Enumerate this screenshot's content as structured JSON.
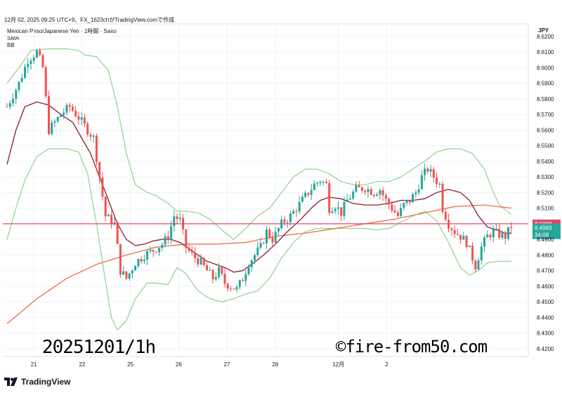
{
  "header": {
    "snapshot_line": "12月 02, 2025 09:25 UTC+9、FX_1623chがTradingView.comで作成"
  },
  "legend": {
    "symbol_line": "Mexican Peso/Japanese Yen · 1時間 · Saxo",
    "indicator_1": "SMA",
    "indicator_2": "BB"
  },
  "watermarks": {
    "date_tag": "20251201/1h",
    "site": "©fire-from50.com"
  },
  "branding": {
    "logo_text": "TradingView"
  },
  "chart_data": {
    "type": "candlestick",
    "currency_label": "JPY",
    "x_tick_labels": [
      "21",
      "22",
      "25",
      "26",
      "27",
      "28",
      "12月",
      "2"
    ],
    "y_ticks": [
      "8.6200",
      "8.6100",
      "8.6000",
      "8.5900",
      "8.5800",
      "8.5700",
      "8.5600",
      "8.5500",
      "8.5400",
      "8.5300",
      "8.5200",
      "8.5100",
      "8.4900",
      "8.4800",
      "8.4700",
      "8.4600",
      "8.4500",
      "8.4400",
      "8.4300",
      "8.4200"
    ],
    "ylim": [
      8.415,
      8.628
    ],
    "reference_line": {
      "value": 8.5,
      "label": "8.5000"
    },
    "last_price": {
      "value": 8.4983,
      "label": "8.4983",
      "countdown": "34:08"
    },
    "colors": {
      "up": "#26a69a",
      "down": "#ef5350",
      "bollinger": "#8fd18f",
      "sma_fast": "#8b1a2b",
      "sma_slow": "#ef6c47",
      "ref_line": "#e0476a",
      "grid": "#f0f3fa"
    },
    "close_path": [
      [
        0,
        8.575
      ],
      [
        4,
        8.59
      ],
      [
        7,
        8.605
      ],
      [
        10,
        8.61
      ],
      [
        12,
        8.6
      ],
      [
        14,
        8.56
      ],
      [
        18,
        8.57
      ],
      [
        21,
        8.575
      ],
      [
        24,
        8.568
      ],
      [
        27,
        8.56
      ],
      [
        29,
        8.555
      ],
      [
        31,
        8.53
      ],
      [
        33,
        8.505
      ],
      [
        36,
        8.5
      ],
      [
        38,
        8.47
      ],
      [
        40,
        8.465
      ],
      [
        43,
        8.475
      ],
      [
        46,
        8.48
      ],
      [
        49,
        8.483
      ],
      [
        52,
        8.487
      ],
      [
        54,
        8.492
      ],
      [
        56,
        8.505
      ],
      [
        58,
        8.502
      ],
      [
        60,
        8.485
      ],
      [
        62,
        8.48
      ],
      [
        65,
        8.475
      ],
      [
        67,
        8.47
      ],
      [
        69,
        8.465
      ],
      [
        71,
        8.47
      ],
      [
        73,
        8.462
      ],
      [
        75,
        8.46
      ],
      [
        77,
        8.458
      ],
      [
        79,
        8.465
      ],
      [
        81,
        8.475
      ],
      [
        83,
        8.48
      ],
      [
        85,
        8.485
      ],
      [
        87,
        8.495
      ],
      [
        89,
        8.49
      ],
      [
        92,
        8.5
      ],
      [
        95,
        8.505
      ],
      [
        97,
        8.51
      ],
      [
        99,
        8.515
      ],
      [
        101,
        8.52
      ],
      [
        103,
        8.525
      ],
      [
        105,
        8.528
      ],
      [
        107,
        8.525
      ],
      [
        108,
        8.51
      ],
      [
        110,
        8.512
      ],
      [
        112,
        8.507
      ],
      [
        114,
        8.515
      ],
      [
        117,
        8.522
      ],
      [
        120,
        8.523
      ],
      [
        123,
        8.52
      ],
      [
        125,
        8.522
      ],
      [
        127,
        8.515
      ],
      [
        129,
        8.51
      ],
      [
        131,
        8.505
      ],
      [
        133,
        8.512
      ],
      [
        135,
        8.515
      ],
      [
        137,
        8.52
      ],
      [
        139,
        8.53
      ],
      [
        141,
        8.535
      ],
      [
        143,
        8.53
      ],
      [
        145,
        8.525
      ],
      [
        146,
        8.51
      ],
      [
        148,
        8.5
      ],
      [
        150,
        8.495
      ],
      [
        152,
        8.492
      ],
      [
        154,
        8.488
      ],
      [
        156,
        8.478
      ],
      [
        157,
        8.473
      ],
      [
        159,
        8.485
      ],
      [
        161,
        8.492
      ],
      [
        163,
        8.495
      ],
      [
        165,
        8.493
      ],
      [
        167,
        8.492
      ],
      [
        169,
        8.4983
      ]
    ],
    "close_path_note": "",
    "bb_upper": [
      [
        0,
        8.59
      ],
      [
        4,
        8.6
      ],
      [
        8,
        8.611
      ],
      [
        14,
        8.612
      ],
      [
        20,
        8.612
      ],
      [
        24,
        8.611
      ],
      [
        26,
        8.608
      ],
      [
        30,
        8.607
      ],
      [
        34,
        8.598
      ],
      [
        37,
        8.575
      ],
      [
        40,
        8.545
      ],
      [
        43,
        8.525
      ],
      [
        47,
        8.52
      ],
      [
        50,
        8.518
      ],
      [
        54,
        8.513
      ],
      [
        57,
        8.508
      ],
      [
        60,
        8.508
      ],
      [
        64,
        8.507
      ],
      [
        68,
        8.503
      ],
      [
        72,
        8.496
      ],
      [
        76,
        8.49
      ],
      [
        80,
        8.497
      ],
      [
        84,
        8.505
      ],
      [
        88,
        8.51
      ],
      [
        92,
        8.52
      ],
      [
        96,
        8.53
      ],
      [
        100,
        8.535
      ],
      [
        104,
        8.535
      ],
      [
        108,
        8.532
      ],
      [
        112,
        8.527
      ],
      [
        116,
        8.525
      ],
      [
        120,
        8.525
      ],
      [
        124,
        8.527
      ],
      [
        128,
        8.527
      ],
      [
        132,
        8.53
      ],
      [
        136,
        8.535
      ],
      [
        140,
        8.54
      ],
      [
        144,
        8.546
      ],
      [
        148,
        8.548
      ],
      [
        152,
        8.548
      ],
      [
        156,
        8.545
      ],
      [
        160,
        8.535
      ],
      [
        163,
        8.52
      ],
      [
        165,
        8.512
      ],
      [
        169,
        8.506
      ]
    ],
    "bb_lower": [
      [
        0,
        8.49
      ],
      [
        3,
        8.51
      ],
      [
        6,
        8.528
      ],
      [
        10,
        8.543
      ],
      [
        14,
        8.548
      ],
      [
        20,
        8.548
      ],
      [
        24,
        8.546
      ],
      [
        27,
        8.532
      ],
      [
        30,
        8.5
      ],
      [
        33,
        8.463
      ],
      [
        35,
        8.44
      ],
      [
        37,
        8.432
      ],
      [
        40,
        8.438
      ],
      [
        43,
        8.452
      ],
      [
        47,
        8.462
      ],
      [
        50,
        8.462
      ],
      [
        54,
        8.461
      ],
      [
        57,
        8.472
      ],
      [
        60,
        8.468
      ],
      [
        64,
        8.457
      ],
      [
        68,
        8.452
      ],
      [
        72,
        8.45
      ],
      [
        76,
        8.452
      ],
      [
        80,
        8.455
      ],
      [
        84,
        8.457
      ],
      [
        88,
        8.465
      ],
      [
        92,
        8.478
      ],
      [
        96,
        8.488
      ],
      [
        100,
        8.495
      ],
      [
        104,
        8.497
      ],
      [
        108,
        8.497
      ],
      [
        112,
        8.497
      ],
      [
        116,
        8.497
      ],
      [
        120,
        8.497
      ],
      [
        124,
        8.496
      ],
      [
        128,
        8.497
      ],
      [
        132,
        8.501
      ],
      [
        136,
        8.505
      ],
      [
        140,
        8.508
      ],
      [
        144,
        8.502
      ],
      [
        148,
        8.488
      ],
      [
        152,
        8.472
      ],
      [
        155,
        8.467
      ],
      [
        158,
        8.47
      ],
      [
        161,
        8.475
      ],
      [
        165,
        8.476
      ],
      [
        169,
        8.476
      ]
    ],
    "sma_fast": [
      [
        0,
        8.538
      ],
      [
        3,
        8.56
      ],
      [
        6,
        8.575
      ],
      [
        10,
        8.578
      ],
      [
        14,
        8.576
      ],
      [
        18,
        8.57
      ],
      [
        22,
        8.565
      ],
      [
        25,
        8.555
      ],
      [
        28,
        8.545
      ],
      [
        31,
        8.53
      ],
      [
        34,
        8.515
      ],
      [
        37,
        8.5
      ],
      [
        40,
        8.49
      ],
      [
        43,
        8.486
      ],
      [
        46,
        8.487
      ],
      [
        49,
        8.489
      ],
      [
        52,
        8.49
      ],
      [
        55,
        8.49
      ],
      [
        58,
        8.488
      ],
      [
        61,
        8.484
      ],
      [
        64,
        8.48
      ],
      [
        67,
        8.476
      ],
      [
        70,
        8.474
      ],
      [
        73,
        8.472
      ],
      [
        76,
        8.469
      ],
      [
        79,
        8.47
      ],
      [
        82,
        8.474
      ],
      [
        86,
        8.48
      ],
      [
        90,
        8.487
      ],
      [
        94,
        8.495
      ],
      [
        98,
        8.502
      ],
      [
        102,
        8.51
      ],
      [
        105,
        8.515
      ],
      [
        108,
        8.517
      ],
      [
        112,
        8.516
      ],
      [
        116,
        8.513
      ],
      [
        120,
        8.512
      ],
      [
        124,
        8.512
      ],
      [
        128,
        8.513
      ],
      [
        132,
        8.515
      ],
      [
        136,
        8.515
      ],
      [
        140,
        8.516
      ],
      [
        144,
        8.52
      ],
      [
        148,
        8.522
      ],
      [
        152,
        8.52
      ],
      [
        155,
        8.515
      ],
      [
        158,
        8.505
      ],
      [
        161,
        8.498
      ],
      [
        164,
        8.496
      ],
      [
        167,
        8.494
      ],
      [
        169,
        8.494
      ]
    ],
    "sma_slow": [
      [
        0,
        8.436
      ],
      [
        10,
        8.452
      ],
      [
        20,
        8.465
      ],
      [
        30,
        8.474
      ],
      [
        40,
        8.48
      ],
      [
        50,
        8.485
      ],
      [
        60,
        8.487
      ],
      [
        70,
        8.487
      ],
      [
        80,
        8.488
      ],
      [
        90,
        8.492
      ],
      [
        100,
        8.494
      ],
      [
        110,
        8.497
      ],
      [
        120,
        8.5
      ],
      [
        130,
        8.503
      ],
      [
        140,
        8.507
      ],
      [
        150,
        8.511
      ],
      [
        160,
        8.512
      ],
      [
        169,
        8.51
      ]
    ]
  }
}
